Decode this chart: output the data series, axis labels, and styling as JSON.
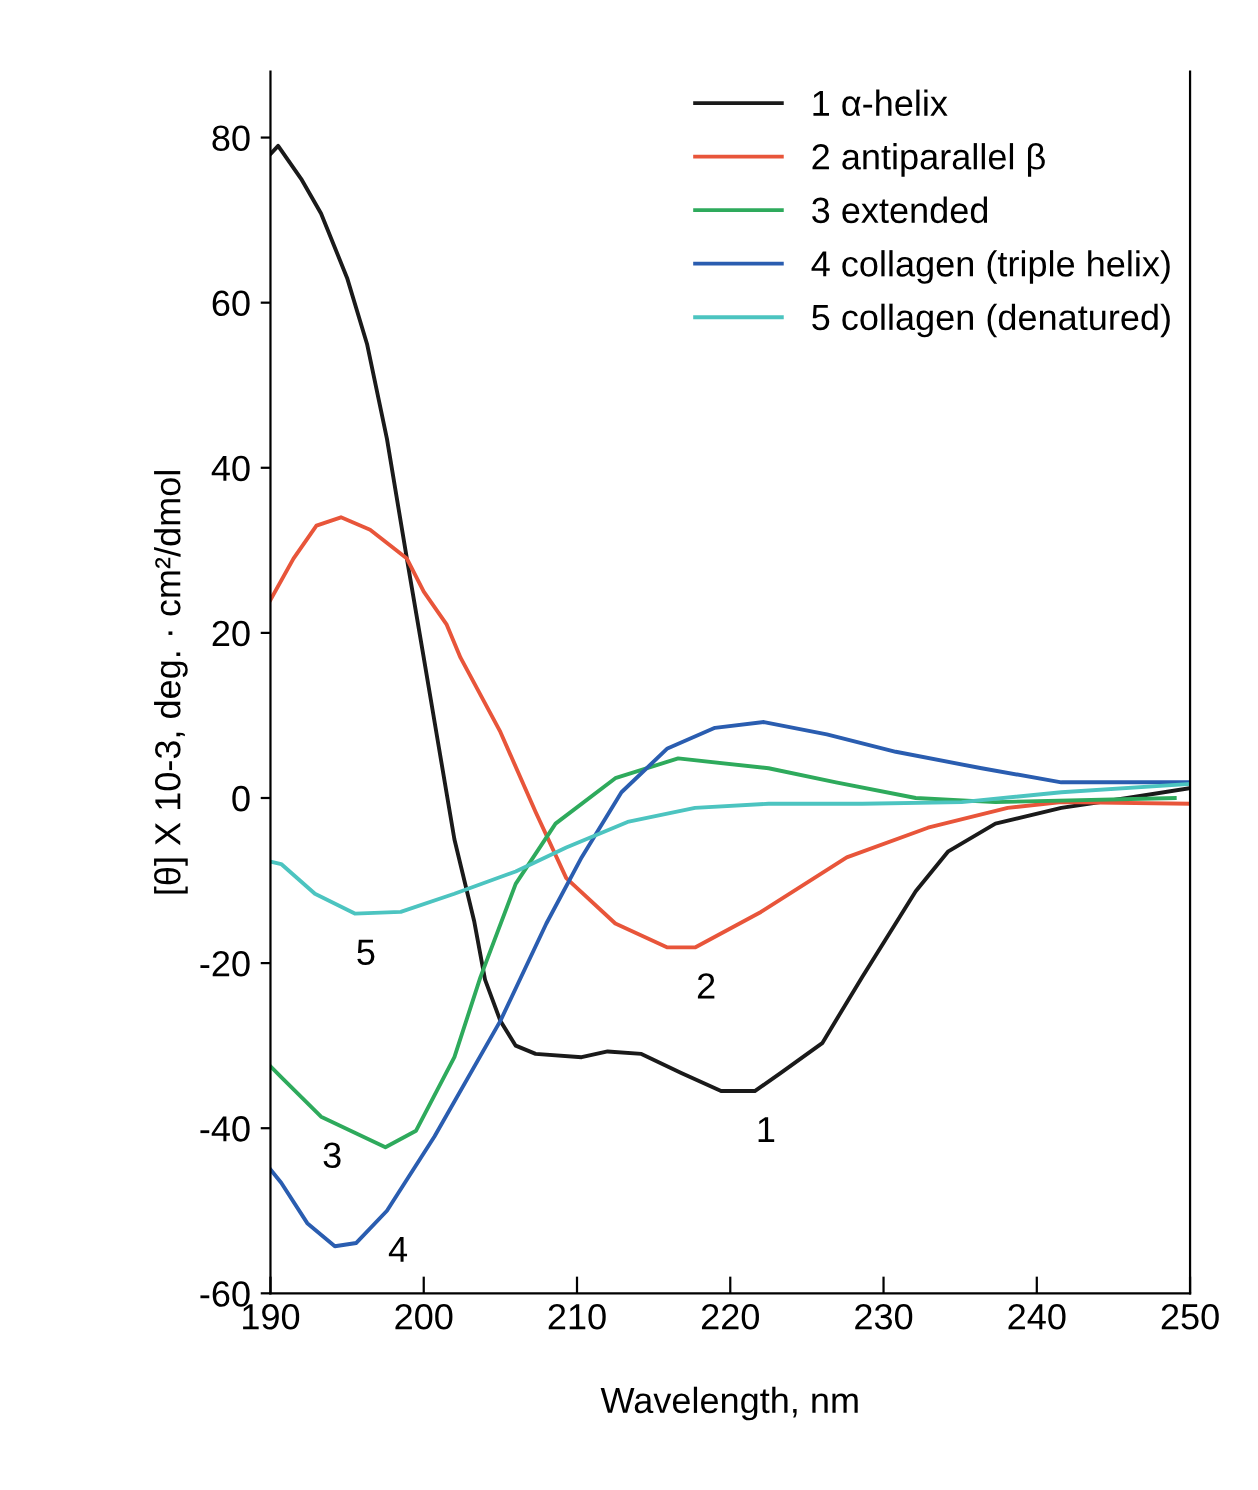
{
  "chart_data": {
    "type": "line",
    "xlabel": "Wavelength, nm",
    "ylabel": "[θ] X 10-3, deg. · cm²/dmol",
    "xlim": [
      190,
      250
    ],
    "ylim": [
      -60,
      88
    ],
    "xticks": [
      190,
      200,
      210,
      220,
      230,
      240,
      250
    ],
    "yticks": [
      -60,
      -40,
      -20,
      0,
      20,
      40,
      60,
      80
    ],
    "grid": false,
    "legend": "top right",
    "marker": "none",
    "line_style": "solid",
    "series": [
      {
        "name": "1 α-helix",
        "color": "#1a1a1a",
        "x": [
          190,
          190.5,
          192,
          193.3,
          195,
          196.3,
          197.6,
          198.9,
          200,
          201,
          202,
          203.3,
          204,
          205,
          206,
          207.3,
          210.3,
          212,
          214.2,
          216.8,
          219.4,
          221.6,
          223.3,
          226,
          228.6,
          232.1,
          234.2,
          237.3,
          241.6,
          245.9,
          250
        ],
        "values": [
          78,
          79,
          75,
          70.8,
          63,
          55,
          43.5,
          29,
          17,
          6,
          -5,
          -15,
          -22,
          -27,
          -30,
          -31,
          -31.4,
          -30.7,
          -31,
          -33.3,
          -35.5,
          -35.5,
          -33.3,
          -29.7,
          -21.7,
          -11.3,
          -6.5,
          -3.1,
          -1.2,
          0,
          1.2
        ]
      },
      {
        "name": "2 antiparallel β",
        "color": "#e8553a",
        "x": [
          190,
          191.5,
          193,
          194.6,
          196.5,
          198.9,
          200,
          201.5,
          202.4,
          205,
          207.3,
          209.3,
          212.5,
          215.9,
          217.7,
          222,
          227.6,
          232.9,
          238.1,
          241.6,
          250
        ],
        "values": [
          24,
          29,
          33,
          34,
          32.5,
          29,
          25,
          21,
          17,
          8,
          -1.7,
          -9.7,
          -15.2,
          -18.1,
          -18.1,
          -13.8,
          -7.2,
          -3.6,
          -1.2,
          -0.5,
          -0.7
        ]
      },
      {
        "name": "3 extended",
        "color": "#2eaa5c",
        "x": [
          190,
          190.7,
          193.3,
          197.5,
          199.5,
          202,
          203.7,
          206,
          208.6,
          212.5,
          216.6,
          222.5,
          226.9,
          232.1,
          237.3,
          249
        ],
        "values": [
          -32.5,
          -33.8,
          -38.6,
          -42.3,
          -40.3,
          -31.4,
          -21.7,
          -10.4,
          -3.1,
          2.4,
          4.8,
          3.6,
          1.9,
          0,
          -0.5,
          0
        ]
      },
      {
        "name": "4 collagen (triple helix)",
        "color": "#2a5db0",
        "x": [
          190,
          190.7,
          192.4,
          194.2,
          195.6,
          197.6,
          200.7,
          205,
          208,
          210.3,
          212.9,
          215.9,
          219,
          222.2,
          226.3,
          230.8,
          236.4,
          241.6,
          250
        ],
        "values": [
          -45,
          -46.6,
          -51.5,
          -54.3,
          -53.9,
          -50,
          -41,
          -27,
          -15.2,
          -7.2,
          0.7,
          6,
          8.5,
          9.2,
          7.7,
          5.6,
          3.6,
          1.9,
          1.9
        ]
      },
      {
        "name": "5 collagen (denatured)",
        "color": "#4cc4c0",
        "x": [
          190,
          190.7,
          192.9,
          195.5,
          198.5,
          202,
          206,
          209.3,
          213.3,
          217.7,
          222.5,
          228.6,
          235.1,
          241.6,
          250
        ],
        "values": [
          -7.7,
          -8,
          -11.6,
          -14,
          -13.8,
          -11.6,
          -8.9,
          -6,
          -2.9,
          -1.2,
          -0.7,
          -0.7,
          -0.5,
          0.7,
          1.7
        ]
      }
    ],
    "annotations": [
      {
        "text": "1",
        "x": 221.6,
        "y": -35.5
      },
      {
        "text": "2",
        "x": 217.7,
        "y": -18.1
      },
      {
        "text": "3",
        "x": 193.3,
        "y": -38.6
      },
      {
        "text": "4",
        "x": 197.6,
        "y": -50
      },
      {
        "text": "5",
        "x": 195.5,
        "y": -14
      }
    ]
  }
}
